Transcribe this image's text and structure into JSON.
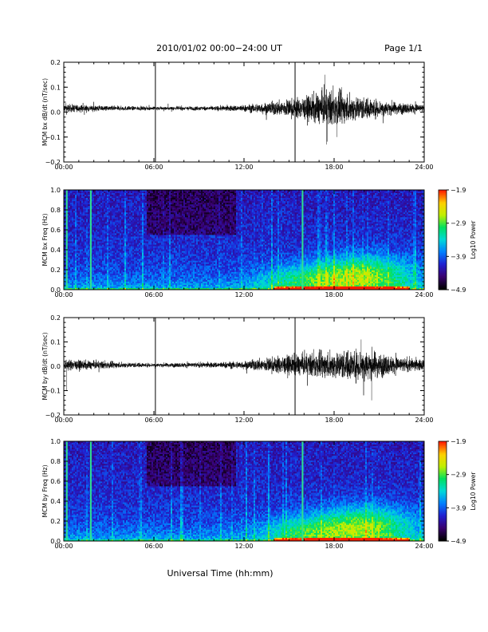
{
  "header": {
    "title": "2010/01/02  00:00−24:00 UT",
    "page": "Page 1/1"
  },
  "footer": {
    "xlabel": "Universal Time (hh:mm)"
  },
  "colors": {
    "trace": "#000000",
    "colormap": [
      "#000000",
      "#3a0070",
      "#2020d0",
      "#0080ff",
      "#00d8d8",
      "#00e060",
      "#c0f000",
      "#ffd000",
      "#ff2000"
    ]
  },
  "chart_data": [
    {
      "type": "line",
      "ylabel": "MCM bx dB/dt (nT/sec)",
      "xlim": [
        0,
        24
      ],
      "ylim": [
        -0.2,
        0.2
      ],
      "x_ticks": [
        "00:00",
        "06:00",
        "12:00",
        "18:00",
        "24:00"
      ],
      "y_ticks": [
        "0.2",
        "0.1",
        "0.0",
        "−0.1",
        "−0.2"
      ],
      "baseline": 0.015,
      "vertical_markers_hours": [
        6.1,
        15.4
      ],
      "amplitude_envelope": [
        {
          "x": 0,
          "amp": 0.015
        },
        {
          "x": 1.5,
          "amp": 0.012
        },
        {
          "x": 3,
          "amp": 0.009
        },
        {
          "x": 6,
          "amp": 0.006
        },
        {
          "x": 10,
          "amp": 0.008
        },
        {
          "x": 12,
          "amp": 0.012
        },
        {
          "x": 14,
          "amp": 0.025
        },
        {
          "x": 16,
          "amp": 0.04
        },
        {
          "x": 17.5,
          "amp": 0.065
        },
        {
          "x": 18.5,
          "amp": 0.055
        },
        {
          "x": 20,
          "amp": 0.04
        },
        {
          "x": 22,
          "amp": 0.022
        },
        {
          "x": 24,
          "amp": 0.014
        }
      ],
      "extremes": [
        {
          "x": 17.4,
          "y": 0.15
        },
        {
          "x": 17.5,
          "y": -0.13
        },
        {
          "x": 18.2,
          "y": -0.1
        },
        {
          "x": 18.5,
          "y": 0.1
        }
      ]
    },
    {
      "type": "heatmap",
      "ylabel": "MCM bx Freq (Hz)",
      "colorbar_label": "Log10 Power",
      "xlim": [
        0,
        24
      ],
      "ylim": [
        0,
        1
      ],
      "x_ticks": [
        "00:00",
        "06:00",
        "12:00",
        "18:00",
        "24:00"
      ],
      "y_ticks": [
        "1.0",
        "0.8",
        "0.6",
        "0.4",
        "0.2",
        "0.0"
      ],
      "colorbar_ticks": [
        "−1.9",
        "−2.9",
        "−3.9",
        "−4.9"
      ],
      "colorbar_range": [
        -4.9,
        -1.9
      ],
      "bright_columns_hours": [
        0.2,
        1.8,
        15.9
      ],
      "hotspot": {
        "x": 20.0,
        "y": 0.15
      }
    },
    {
      "type": "line",
      "ylabel": "MCM by dB/dt (nT/sec)",
      "xlim": [
        0,
        24
      ],
      "ylim": [
        -0.2,
        0.2
      ],
      "x_ticks": [
        "00:00",
        "06:00",
        "12:00",
        "18:00",
        "24:00"
      ],
      "y_ticks": [
        "0.2",
        "0.1",
        "0.0",
        "−0.1",
        "−0.2"
      ],
      "baseline": 0.005,
      "vertical_markers_hours": [
        6.1,
        15.4
      ],
      "amplitude_envelope": [
        {
          "x": 0,
          "amp": 0.02
        },
        {
          "x": 2,
          "amp": 0.015
        },
        {
          "x": 4,
          "amp": 0.01
        },
        {
          "x": 6,
          "amp": 0.007
        },
        {
          "x": 10,
          "amp": 0.01
        },
        {
          "x": 12,
          "amp": 0.015
        },
        {
          "x": 14,
          "amp": 0.03
        },
        {
          "x": 16,
          "amp": 0.04
        },
        {
          "x": 18,
          "amp": 0.05
        },
        {
          "x": 20,
          "amp": 0.06
        },
        {
          "x": 22,
          "amp": 0.03
        },
        {
          "x": 24,
          "amp": 0.02
        }
      ],
      "extremes": [
        {
          "x": 19.8,
          "y": 0.11
        },
        {
          "x": 20.5,
          "y": -0.14
        },
        {
          "x": 0.2,
          "y": -0.1
        }
      ]
    },
    {
      "type": "heatmap",
      "ylabel": "MCM by Freq (Hz)",
      "colorbar_label": "Log10 Power",
      "xlim": [
        0,
        24
      ],
      "ylim": [
        0,
        1
      ],
      "x_ticks": [
        "00:00",
        "06:00",
        "12:00",
        "18:00",
        "24:00"
      ],
      "y_ticks": [
        "1.0",
        "0.8",
        "0.6",
        "0.4",
        "0.2",
        "0.0"
      ],
      "colorbar_ticks": [
        "−1.9",
        "−2.9",
        "−3.9",
        "−4.9"
      ],
      "colorbar_range": [
        -4.9,
        -1.9
      ],
      "bright_columns_hours": [
        0.2,
        1.8,
        15.9
      ],
      "hotspot": {
        "x": 20.0,
        "y": 0.15
      }
    }
  ]
}
